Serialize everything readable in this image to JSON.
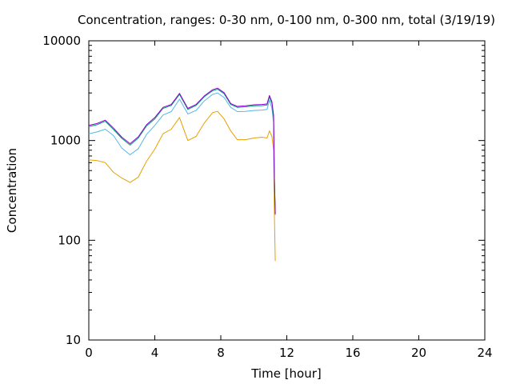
{
  "chart_data": {
    "type": "line",
    "title": "Concentration, ranges: 0-30 nm, 0-100 nm, 0-300 nm, total (3/19/19)",
    "xlabel": "Time [hour]",
    "ylabel": "Concentration",
    "xlim": [
      0,
      24
    ],
    "ylim": [
      10,
      10000
    ],
    "yscale": "log",
    "x_ticks": [
      "0",
      "4",
      "8",
      "12",
      "16",
      "20",
      "24"
    ],
    "y_ticks": [
      "10",
      "100",
      "1000",
      "10000"
    ],
    "grid": false,
    "x": [
      0,
      0.5,
      1.0,
      1.5,
      2.0,
      2.5,
      3.0,
      3.5,
      4.0,
      4.5,
      5.0,
      5.5,
      6.0,
      6.5,
      7.0,
      7.5,
      7.8,
      8.2,
      8.6,
      9.0,
      9.5,
      10.0,
      10.5,
      10.8,
      10.95,
      11.1,
      11.2,
      11.25,
      11.3
    ],
    "series": [
      {
        "color": "#e6a000",
        "values": [
          640,
          630,
          600,
          480,
          420,
          380,
          430,
          620,
          820,
          1170,
          1300,
          1700,
          1000,
          1100,
          1500,
          1900,
          1960,
          1650,
          1250,
          1020,
          1020,
          1060,
          1080,
          1060,
          1250,
          1100,
          800,
          180,
          62
        ]
      },
      {
        "color": "#56b4e9",
        "values": [
          1170,
          1220,
          1300,
          1120,
          840,
          720,
          830,
          1150,
          1420,
          1800,
          1950,
          2600,
          1850,
          2000,
          2500,
          2900,
          3000,
          2700,
          2150,
          1950,
          1960,
          2000,
          2020,
          2050,
          2550,
          2100,
          1500,
          340,
          200
        ]
      },
      {
        "color": "#009e73",
        "values": [
          1380,
          1440,
          1560,
          1290,
          1050,
          900,
          1060,
          1400,
          1650,
          2100,
          2250,
          2900,
          2050,
          2250,
          2750,
          3150,
          3270,
          2950,
          2300,
          2150,
          2180,
          2230,
          2240,
          2270,
          2750,
          2350,
          1700,
          400,
          180
        ]
      },
      {
        "color": "#9400d3",
        "values": [
          1420,
          1480,
          1600,
          1330,
          1080,
          930,
          1090,
          1440,
          1700,
          2150,
          2300,
          2970,
          2100,
          2300,
          2800,
          3230,
          3350,
          3020,
          2350,
          2200,
          2230,
          2280,
          2300,
          2330,
          2830,
          2450,
          1800,
          420,
          185
        ]
      }
    ]
  }
}
